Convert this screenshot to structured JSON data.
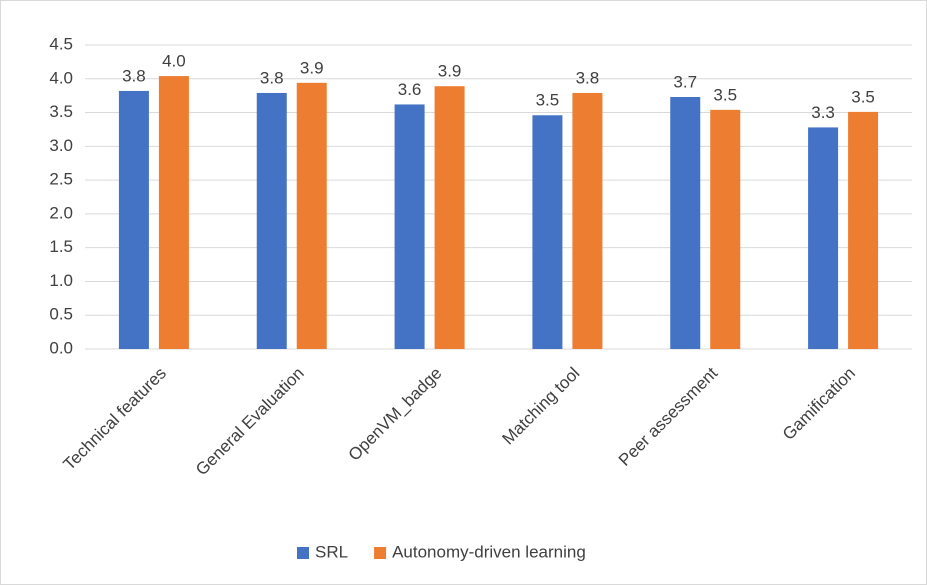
{
  "chart_data": {
    "type": "bar",
    "categories": [
      "Technical features",
      "General Evaluation",
      "OpenVM_badge",
      "Matching tool",
      "Peer assessment",
      "Gamification"
    ],
    "series": [
      {
        "name": "SRL",
        "color": "#4472c4",
        "values": [
          3.82,
          3.79,
          3.62,
          3.46,
          3.73,
          3.28
        ],
        "value_labels": [
          "3.8",
          "3.8",
          "3.6",
          "3.5",
          "3.7",
          "3.3"
        ]
      },
      {
        "name": "Autonomy-driven learning",
        "color": "#ed7d31",
        "values": [
          4.04,
          3.94,
          3.89,
          3.79,
          3.54,
          3.51
        ],
        "value_labels": [
          "4.0",
          "3.9",
          "3.9",
          "3.8",
          "3.5",
          "3.5"
        ]
      }
    ],
    "ylim": [
      0,
      4.5
    ],
    "yticks": [
      {
        "value": 0,
        "label": "0.0"
      },
      0.5,
      {
        "value": 1,
        "label": "1.0"
      },
      1.5,
      {
        "value": 2,
        "label": "2.0"
      },
      2.5,
      {
        "value": 3,
        "label": "3.0"
      },
      3.5,
      {
        "value": 4,
        "label": "4.0"
      },
      4.5
    ],
    "grid": true,
    "legend": "bottom"
  }
}
